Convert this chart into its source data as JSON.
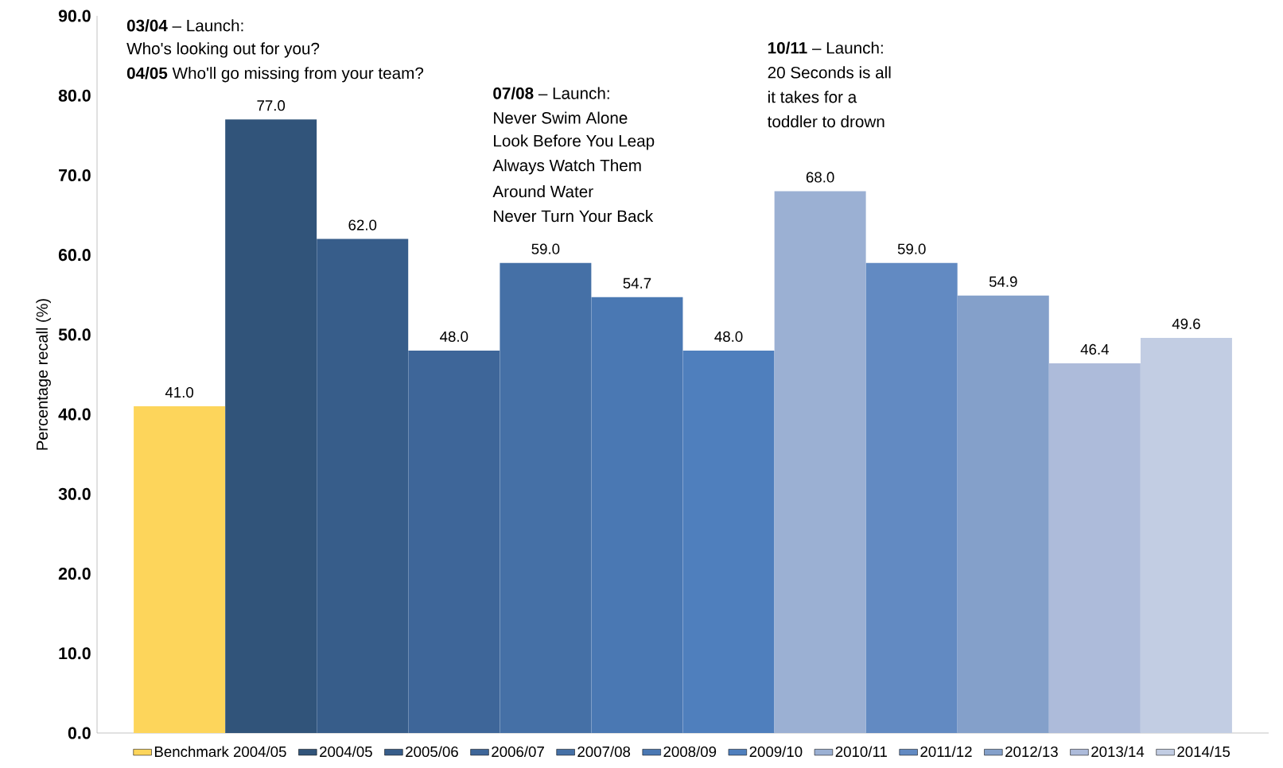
{
  "chart_data": {
    "type": "bar",
    "ylabel": "Percentage recall (%)",
    "categories": [
      null,
      null,
      null,
      null,
      null,
      null,
      null,
      null,
      null,
      null,
      null,
      null
    ],
    "series": [
      {
        "name": "Benchmark 2004/05",
        "color": "#fdd55b",
        "values": [
          41.0,
          null,
          null,
          null,
          null,
          null,
          null,
          null,
          null,
          null,
          null,
          null
        ],
        "value_labels": [
          "41.0",
          null,
          null,
          null,
          null,
          null,
          null,
          null,
          null,
          null,
          null,
          null
        ]
      },
      {
        "name": "2004/05",
        "color": "#31547a",
        "values": [
          null,
          77.0,
          null,
          null,
          null,
          null,
          null,
          null,
          null,
          null,
          null,
          null
        ],
        "value_labels": [
          null,
          "77.0",
          null,
          null,
          null,
          null,
          null,
          null,
          null,
          null,
          null,
          null
        ]
      },
      {
        "name": "2005/06",
        "color": "#375d8a",
        "values": [
          null,
          null,
          62.0,
          null,
          null,
          null,
          null,
          null,
          null,
          null,
          null,
          null
        ],
        "value_labels": [
          null,
          null,
          "62.0",
          null,
          null,
          null,
          null,
          null,
          null,
          null,
          null,
          null
        ]
      },
      {
        "name": "2006/07",
        "color": "#3e6699",
        "values": [
          null,
          null,
          null,
          48.0,
          null,
          null,
          null,
          null,
          null,
          null,
          null,
          null
        ],
        "value_labels": [
          null,
          null,
          null,
          "48.0",
          null,
          null,
          null,
          null,
          null,
          null,
          null,
          null
        ]
      },
      {
        "name": "2007/08",
        "color": "#4570a6",
        "values": [
          null,
          null,
          null,
          null,
          59.0,
          null,
          null,
          null,
          null,
          null,
          null,
          null
        ],
        "value_labels": [
          null,
          null,
          null,
          null,
          "59.0",
          null,
          null,
          null,
          null,
          null,
          null,
          null
        ]
      },
      {
        "name": "2008/09",
        "color": "#4a78b3",
        "values": [
          null,
          null,
          null,
          null,
          null,
          54.7,
          null,
          null,
          null,
          null,
          null,
          null
        ],
        "value_labels": [
          null,
          null,
          null,
          null,
          null,
          "54.7",
          null,
          null,
          null,
          null,
          null,
          null
        ]
      },
      {
        "name": "2009/10",
        "color": "#4f7fbd",
        "values": [
          null,
          null,
          null,
          null,
          null,
          null,
          48.0,
          null,
          null,
          null,
          null,
          null
        ],
        "value_labels": [
          null,
          null,
          null,
          null,
          null,
          null,
          "48.0",
          null,
          null,
          null,
          null,
          null
        ]
      },
      {
        "name": "2010/11",
        "color": "#9bb0d3",
        "values": [
          null,
          null,
          null,
          null,
          null,
          null,
          null,
          68.0,
          null,
          null,
          null,
          null
        ],
        "value_labels": [
          null,
          null,
          null,
          null,
          null,
          null,
          null,
          "68.0",
          null,
          null,
          null,
          null
        ]
      },
      {
        "name": "2011/12",
        "color": "#628ac2",
        "values": [
          null,
          null,
          null,
          null,
          null,
          null,
          null,
          null,
          59.0,
          null,
          null,
          null
        ],
        "value_labels": [
          null,
          null,
          null,
          null,
          null,
          null,
          null,
          null,
          "59.0",
          null,
          null,
          null
        ]
      },
      {
        "name": "2012/13",
        "color": "#84a0ca",
        "values": [
          null,
          null,
          null,
          null,
          null,
          null,
          null,
          null,
          null,
          54.9,
          null,
          null
        ],
        "value_labels": [
          null,
          null,
          null,
          null,
          null,
          null,
          null,
          null,
          null,
          "54.9",
          null,
          null
        ]
      },
      {
        "name": "2013/14",
        "color": "#adbbda",
        "values": [
          null,
          null,
          null,
          null,
          null,
          null,
          null,
          null,
          null,
          null,
          46.4,
          null
        ],
        "value_labels": [
          null,
          null,
          null,
          null,
          null,
          null,
          null,
          null,
          null,
          null,
          "46.4",
          null
        ]
      },
      {
        "name": "2014/15",
        "color": "#c2cde3",
        "values": [
          null,
          null,
          null,
          null,
          null,
          null,
          null,
          null,
          null,
          null,
          null,
          49.6
        ],
        "value_labels": [
          null,
          null,
          null,
          null,
          null,
          null,
          null,
          null,
          null,
          null,
          null,
          "49.6"
        ]
      }
    ],
    "ylim": [
      0,
      90
    ],
    "yticks": [
      {
        "value": 0,
        "label": "0.0"
      },
      {
        "value": 10,
        "label": "10.0"
      },
      {
        "value": 20,
        "label": "20.0"
      },
      {
        "value": 30,
        "label": "30.0"
      },
      {
        "value": 40,
        "label": "40.0"
      },
      {
        "value": 50,
        "label": "50.0"
      },
      {
        "value": 60,
        "label": "60.0"
      },
      {
        "value": 70,
        "label": "70.0"
      },
      {
        "value": 80,
        "label": "80.0"
      },
      {
        "value": 90,
        "label": "90.0"
      }
    ],
    "tick_labels": "y",
    "legend": "bottom",
    "annotations": [
      "**03/04** – Launch:",
      "Who's looking out for you?",
      "**04/05** Who'll go missing from your team?",
      "**07/08** – Launch:",
      "Never Swim Alone",
      "Look Before You Leap",
      "Always Watch Them",
      "Around Water",
      "Never Turn Your Back",
      "**10/11** – Launch:",
      "20 Seconds is all",
      "it takes for a",
      "toddler to drown"
    ]
  }
}
